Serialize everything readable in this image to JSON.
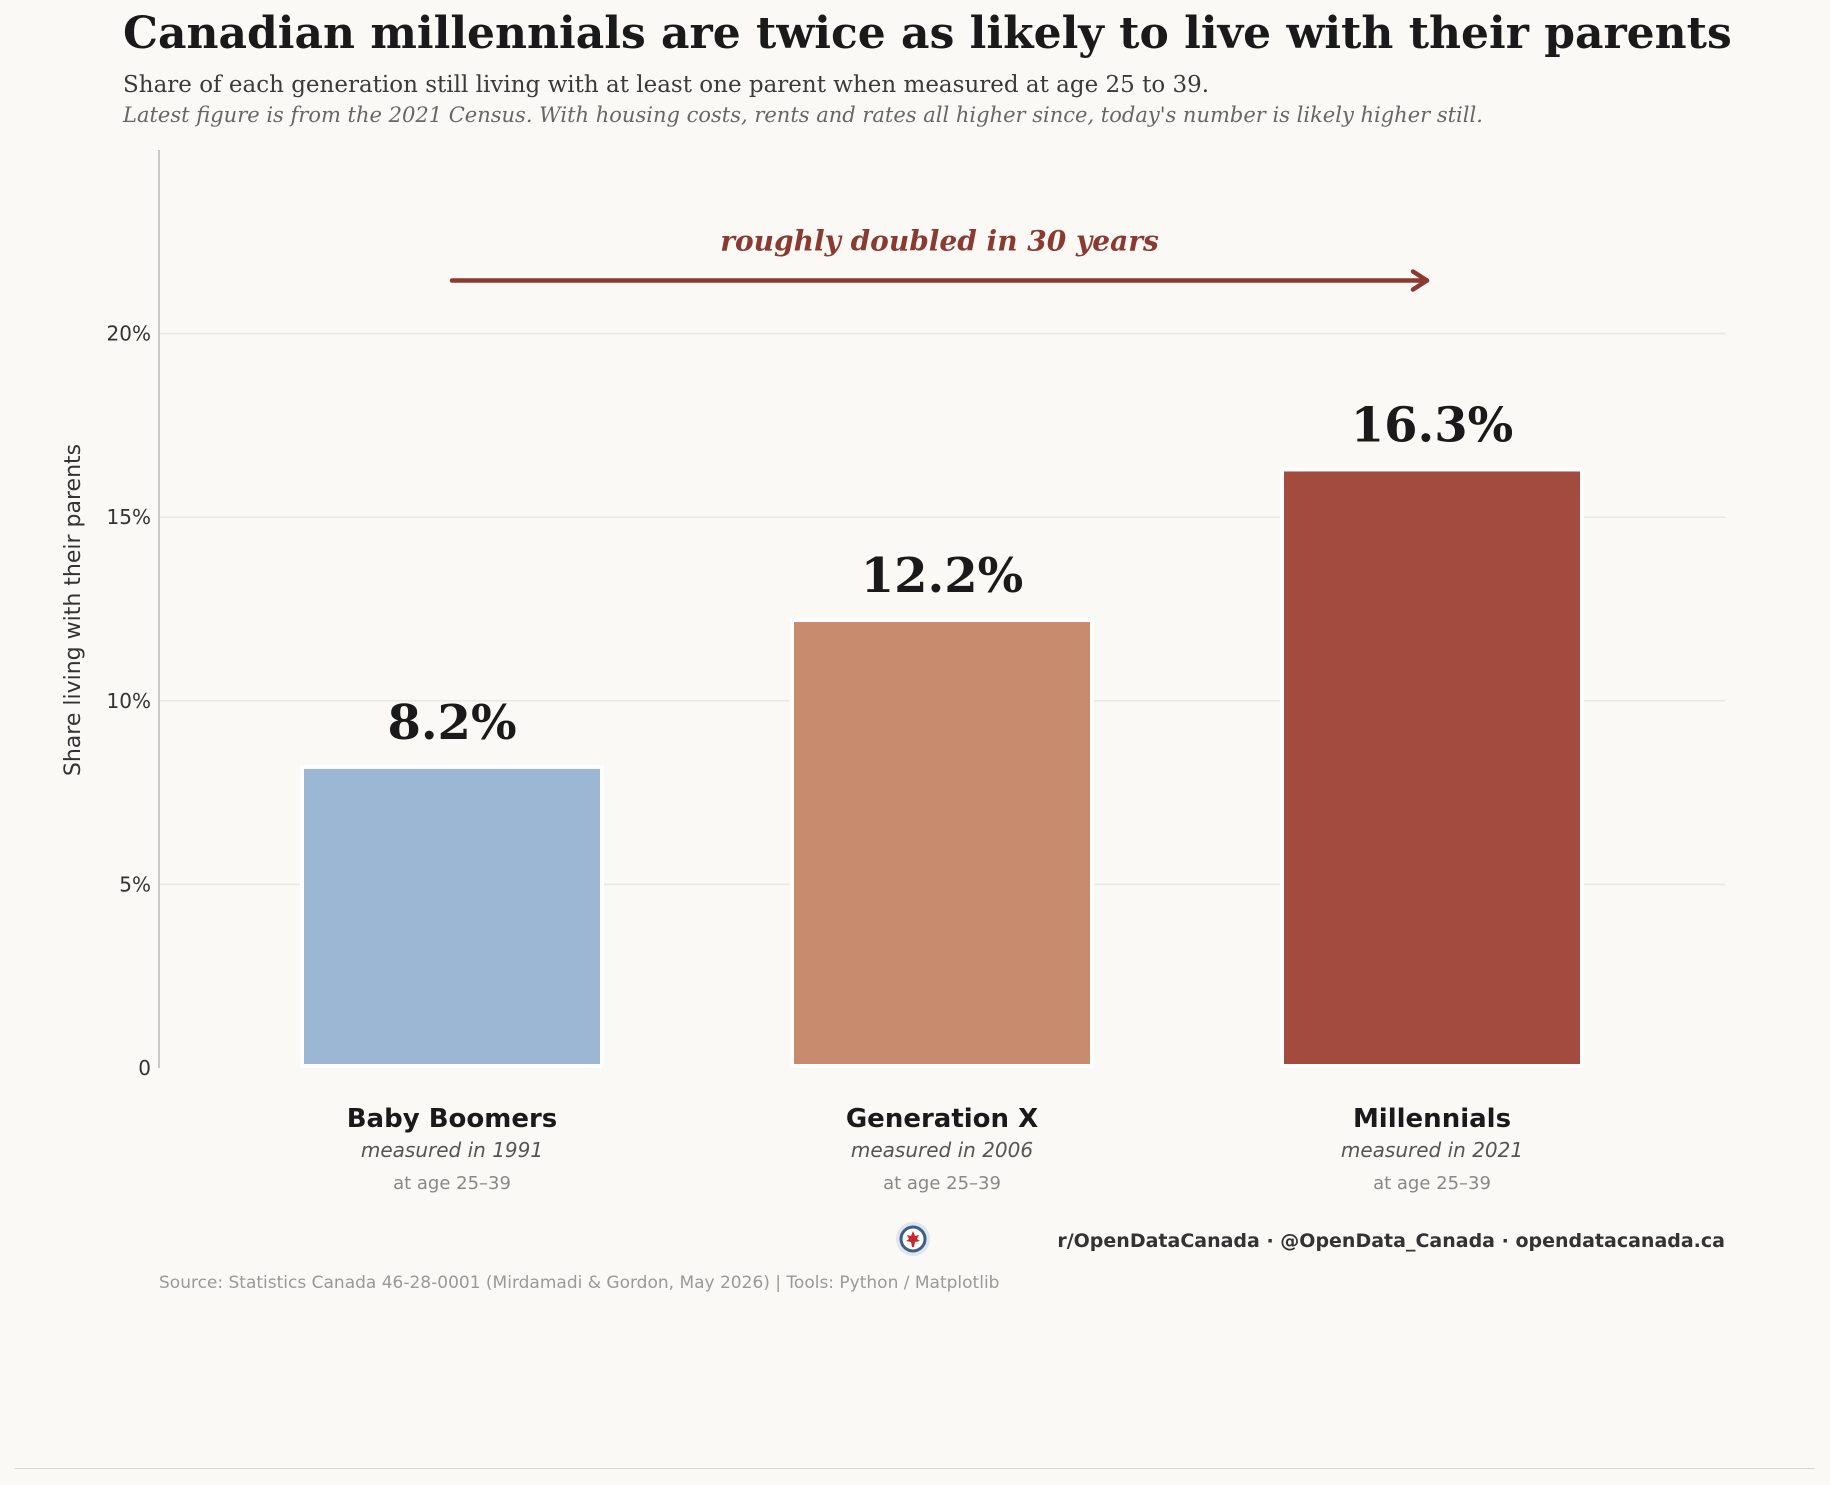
{
  "title": "Canadian millennials are twice as likely to live with their parents",
  "subtitle": "Share of each generation still living with at least one parent when measured at age 25 to 39.",
  "note": "Latest figure is from the 2021 Census. With housing costs, rents and rates all higher since, today's number is likely higher still.",
  "chart_data": {
    "type": "bar",
    "ylabel": "Share living with their parents",
    "ylim": [
      0,
      25
    ],
    "yticks": [
      0,
      5,
      10,
      15,
      20
    ],
    "ytick_labels": [
      "0",
      "5%",
      "10%",
      "15%",
      "20%"
    ],
    "grid": true,
    "categories": [
      "Baby Boomers",
      "Generation X",
      "Millennials"
    ],
    "category_sublabels": [
      "measured in 1991",
      "measured in 2006",
      "measured in 2021"
    ],
    "category_age_labels": [
      "at age 25–39",
      "at age 25–39",
      "at age 25–39"
    ],
    "values": [
      8.2,
      12.2,
      16.3
    ],
    "value_labels": [
      "8.2%",
      "12.2%",
      "16.3%"
    ],
    "bar_colors": [
      "#9bb7d4",
      "#c88b6d",
      "#a34b3e"
    ],
    "annotation": {
      "text": "roughly doubled in 30 years",
      "color": "#8b3a32",
      "from_category": 0,
      "to_category": 2,
      "y": 21.5
    }
  },
  "footer": {
    "handles": "r/OpenDataCanada  ·  @OpenData_Canada  ·  opendatacanada.ca",
    "source": "Source: Statistics Canada 46-28-0001 (Mirdamadi & Gordon, May 2026)  |  Tools: Python / Matplotlib",
    "logo_icon": "maple-leaf-logo-icon"
  }
}
